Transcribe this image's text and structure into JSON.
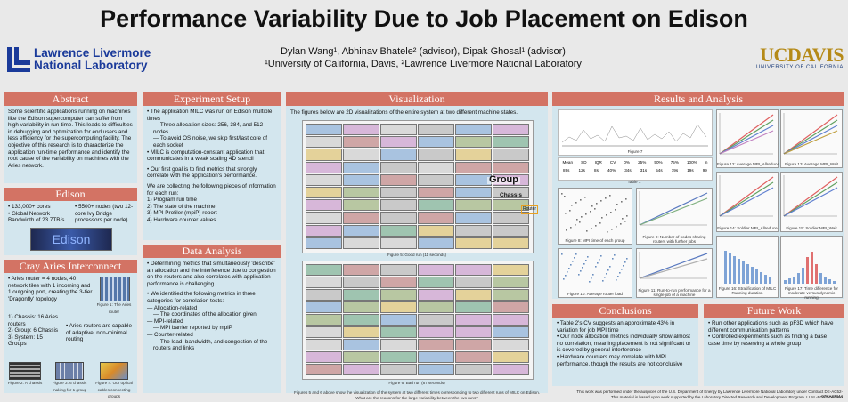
{
  "header": {
    "title": "Performance Variability Due to Job Placement on Edison",
    "authors": "Dylan Wang¹, Abhinav Bhatele² (advisor), Dipak Ghosal¹ (advisor)",
    "affiliations": "¹University of California, Davis, ²Lawrence Livermore National Laboratory",
    "left_logo_line1": "Lawrence Livermore",
    "left_logo_line2": "National Laboratory",
    "right_logo_big": "UCDAVIS",
    "right_logo_small": "UNIVERSITY OF CALIFORNIA"
  },
  "colors": {
    "panel_bg": "#d3e6ee",
    "header_bg": "#d37364",
    "llnl_blue": "#1a3a9a",
    "ucd_gold": "#b58a18"
  },
  "abstract": {
    "heading": "Abstract",
    "text": "Some scientific applications running on machines like the Edison supercomputer can suffer from high variability in run-time. This leads to difficulties in debugging and optimization for end users and less efficiency for the supercomputing facility. The objective of this research is to characterize the application run-time performance and identify the root cause of the variability on machines with the Aries network."
  },
  "edison": {
    "heading": "Edison",
    "left": [
      "• 133,000+ cores",
      "• Global Network Bandwidth of 23.7TB/s"
    ],
    "right": [
      "• 5500+ nodes (two 12-core Ivy Bridge processors per node)"
    ],
    "photo_label": "Edison"
  },
  "cray": {
    "heading": "Cray Aries Interconnect",
    "intro": "• Aries router = 4 nodes, 40 network tiles with 1 incoming and 1 outgoing port, creating the 3-tier 'Dragonfly' topology",
    "list": [
      "1) Chassis: 16 Aries routers",
      "2) Group: 6 Chassis",
      "3) System: 15 Groups"
    ],
    "side": "• Aries routers are capable of adaptive, non-minimal routing",
    "fig1": "Figure 1: The Aries router",
    "fig2": "Figure 2: A chassis",
    "fig3": "Figure 3: 6 chassis making for 1 group",
    "fig4": "Figure 4: Our optical cables connecting groups"
  },
  "setup": {
    "heading": "Experiment Setup",
    "items": [
      "• The application MILC was run on Edison multiple times",
      "— Three allocation sizes: 256, 384, and 512 nodes",
      "— To avoid OS noise, we skip first/last core of each socket",
      "• MILC is computation-constant application that communicates in a weak scaling 4D stencil"
    ],
    "goal": "• Our first goal is to find metrics that strongly correlate with the application's performance.",
    "collect": "We are collecting the following pieces of information for each run:",
    "list": [
      "1) Program run time",
      "2) The state of the machine",
      "3) MPI Profiler (mpiP) report",
      "4) Hardware counter values"
    ]
  },
  "data_analysis": {
    "heading": "Data Analysis",
    "p1": "• Determining metrics that simultaneously 'describe' an allocation and the interference due to congestion on the routers and also correlates with application performance is challenging.",
    "p2": "• We identified the following metrics in three categories for correlation tests:",
    "list": [
      "— Allocation-related",
      "— The coordinates of the allocation given",
      "— MPI-related",
      "— MPI barrier reported by mpiP",
      "— Counter-related",
      "— The load, bandwidth, and congestion of the routers and links"
    ]
  },
  "visualization": {
    "heading": "Visualization",
    "intro": "The figures below are 2D visualizations of the entire system at two different machine states.",
    "label_group": "Group",
    "label_chassis": "Chassis",
    "label_router": "Router",
    "fig5": "Figure 5: Good run (11 seconds)",
    "fig6": "Figure 6: Bad run (87 seconds)",
    "caption1": "Figures 5 and 6 above show the visualization of the system at two different times corresponding to two different runs of MILC on Edison.",
    "caption2": "What are the reasons for the large variability between the two runs?"
  },
  "results": {
    "heading": "Results and Analysis",
    "table_headers": [
      "Mean",
      "SD",
      "IQR",
      "CV",
      "0%",
      "25%",
      "50%",
      "75%",
      "100%",
      "n"
    ],
    "table_values": [
      "89s",
      "12s",
      "8s",
      "40%",
      "34s",
      "31s",
      "54s",
      "79s",
      "19s",
      "99"
    ],
    "table_caption": "Table 1",
    "fig7": "Figure 7",
    "fig8": "Figure 8: MPI time of each group",
    "fig9": "Figure 9: Number of nodes sharing routers with further jobs",
    "fig10": "Figure 10: Average router load",
    "fig11": "Figure 11: Run-to-run performance for a single job of a machine",
    "fig12": "Figure 12: Average MPI_Allreduce",
    "fig13": "Figure 13: Average MPI_Wait",
    "fig14": "Figure 14: Soldier MPI_Allreduce",
    "fig15": "Figure 15: Soldier MPI_Wait",
    "fig16": "Figure 16: Stratification of MILC Running duration",
    "fig17": "Figure 17: Time difference for moderate versus dynamic running"
  },
  "conclusions": {
    "heading": "Conclusions",
    "items": [
      "• Table 2's CV suggests an approximate 43% in variation for job MPI time",
      "• Our node allocation metrics individually show almost no correlation, meaning placement is not significant or is covered by general interference",
      "• Hardware counters may correlate with MPI performance, though the results are not conclusive"
    ]
  },
  "future": {
    "heading": "Future Work",
    "items": [
      "• Run other applications such as pF3D which have different communication patterns",
      "• Controlled experiments such as finding a base case time by reserving a whole group"
    ]
  },
  "footer": {
    "line1": "This work was performed under the auspices of the U.S. Department of Energy by Lawrence Livermore National Laboratory under Contract DE-AC52-07NA27344",
    "line2": "This material is based upon work supported by the Laboratory Directed Research and Development Program. LLNL-POST-000000"
  }
}
